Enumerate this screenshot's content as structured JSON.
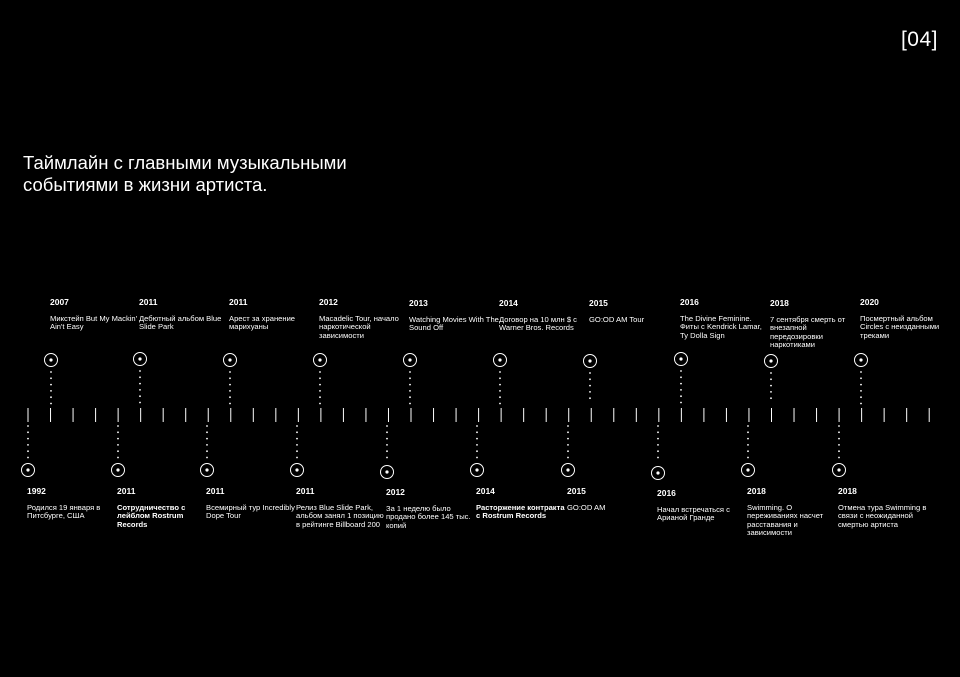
{
  "page_number": "[04]",
  "title": "Таймлайн с главными музыкальными событиями в жизни артиста.",
  "colors": {
    "background": "#000000",
    "foreground": "#ffffff"
  },
  "events_top": [
    {
      "year": "2007",
      "text": "Микстейп But My Mackin' Ain't Easy"
    },
    {
      "year": "2011",
      "text": "Дебютный альбом Blue Slide Park"
    },
    {
      "year": "2011",
      "text": "Арест за хранение марихуаны"
    },
    {
      "year": "2012",
      "text": "Macadelic Tour, начало наркотической зависимости"
    },
    {
      "year": "2013",
      "text": "Watching Movies With The Sound Off"
    },
    {
      "year": "2014",
      "text": "Договор на 10 млн $ с Warner Bros. Records"
    },
    {
      "year": "2015",
      "text": "GO:OD AM Tour"
    },
    {
      "year": "2016",
      "text": "The Divine Feminine. Фиты с Kendrick Lamar, Ty Dolla Sign"
    },
    {
      "year": "2018",
      "text": "7 сентября смерть от внезапной передозировки наркотиками"
    },
    {
      "year": "2020",
      "text": "Посмертный альбом Circles с неизданными треками"
    }
  ],
  "events_bottom": [
    {
      "year": "1992",
      "text": "Родился 19 января в Питсбурге, США"
    },
    {
      "year": "2011",
      "text": "Сотрудничество с лейблом Rostrum Records"
    },
    {
      "year": "2011",
      "text": "Всемирный тур Incredibly Dope Tour"
    },
    {
      "year": "2011",
      "text": "Релиз Blue Slide Park, альбом занял 1 позицию в рейтинге Billboard 200"
    },
    {
      "year": "2012",
      "text": "За 1 неделю было продано более 145 тыс. копий"
    },
    {
      "year": "2014",
      "text": "Расторжение контракта с Rostrum Records"
    },
    {
      "year": "2015",
      "text": "GO:OD AM"
    },
    {
      "year": "2016",
      "text": "Начал встречаться с Арианой Гранде"
    },
    {
      "year": "2018",
      "text": "Swimming. О переживаниях насчет расставания и зависимости"
    },
    {
      "year": "2018",
      "text": "Отмена тура Swimming в связи с неожиданной смертью артиста"
    }
  ]
}
